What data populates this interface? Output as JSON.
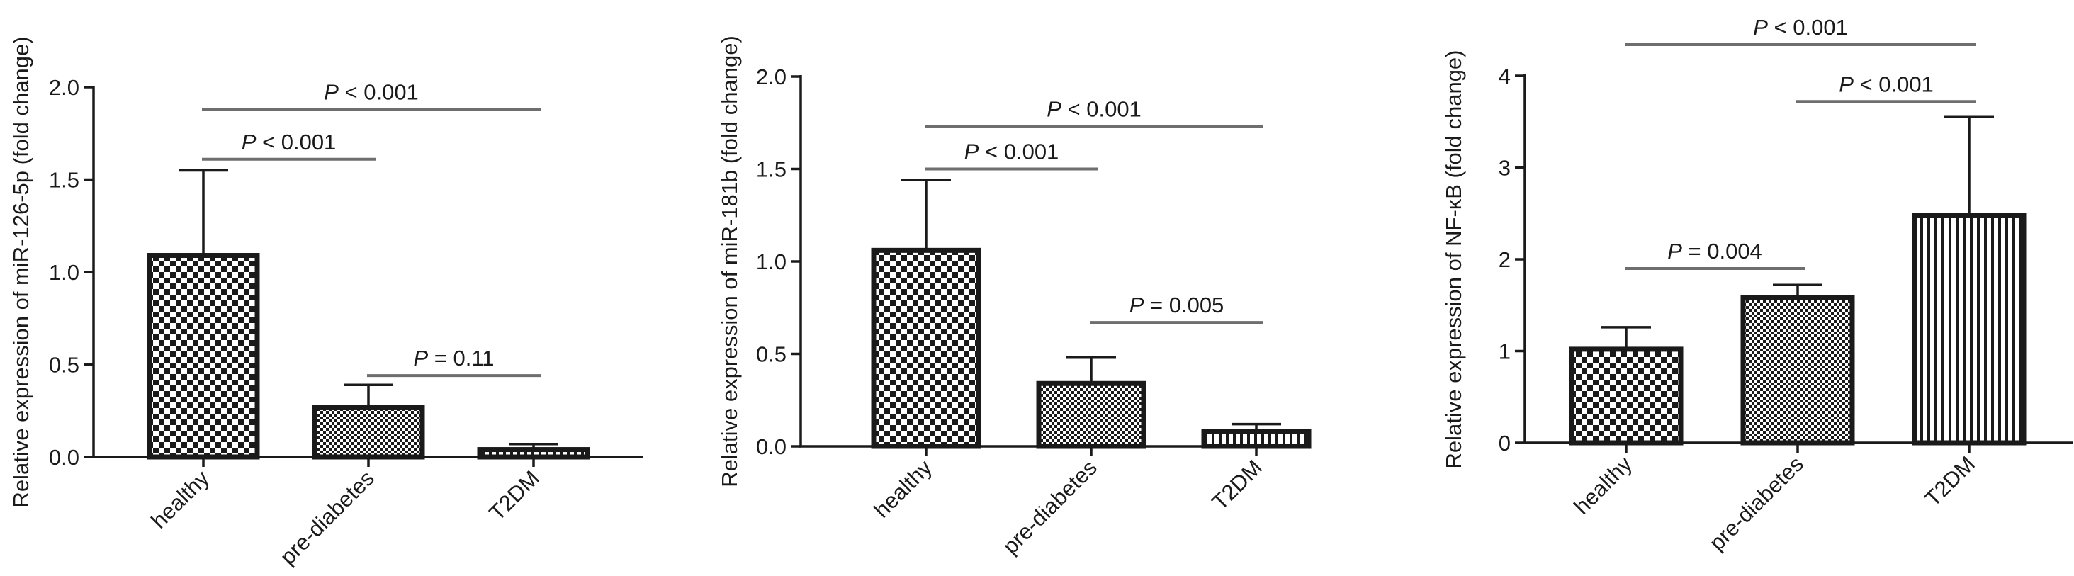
{
  "colors": {
    "ink": "#1a1a1a",
    "bracket": "#6e6e6e",
    "background": "#ffffff"
  },
  "patterns": {
    "healthy": "checker",
    "pre-diabetes": "fine-checker",
    "T2DM": "vertical-stripes"
  },
  "chart_data": [
    {
      "type": "bar",
      "ylabel": "Relative expression of miR-126-5p (fold change)",
      "categories": [
        "healthy",
        "pre-diabetes",
        "T2DM"
      ],
      "values": [
        1.09,
        0.27,
        0.04
      ],
      "errors": [
        0.46,
        0.12,
        0.03
      ],
      "ylim": [
        0,
        2.0
      ],
      "yticks": [
        0.0,
        0.5,
        1.0,
        1.5,
        2.0
      ],
      "ytick_labels": [
        "0.0",
        "0.5",
        "1.0",
        "1.5",
        "2.0"
      ],
      "comparisons": [
        {
          "from": 0,
          "to": 1,
          "y": 1.61,
          "p_symbol": "P",
          "p_text": " < 0.001"
        },
        {
          "from": 0,
          "to": 2,
          "y": 1.88,
          "p_symbol": "P",
          "p_text": " < 0.001"
        },
        {
          "from": 1,
          "to": 2,
          "y": 0.44,
          "p_symbol": "P",
          "p_text": " = 0.11"
        }
      ]
    },
    {
      "type": "bar",
      "ylabel": "Relative expression of miR-181b (fold change)",
      "categories": [
        "healthy",
        "pre-diabetes",
        "T2DM"
      ],
      "values": [
        1.06,
        0.34,
        0.08
      ],
      "errors": [
        0.38,
        0.14,
        0.04
      ],
      "ylim": [
        0,
        2.0
      ],
      "yticks": [
        0.0,
        0.5,
        1.0,
        1.5,
        2.0
      ],
      "ytick_labels": [
        "0.0",
        "0.5",
        "1.0",
        "1.5",
        "2.0"
      ],
      "comparisons": [
        {
          "from": 0,
          "to": 1,
          "y": 1.5,
          "p_symbol": "P",
          "p_text": " < 0.001"
        },
        {
          "from": 0,
          "to": 2,
          "y": 1.73,
          "p_symbol": "P",
          "p_text": " < 0.001"
        },
        {
          "from": 1,
          "to": 2,
          "y": 0.67,
          "p_symbol": "P",
          "p_text": " = 0.005"
        }
      ]
    },
    {
      "type": "bar",
      "ylabel": "Relative expression of NF-κB (fold change)",
      "categories": [
        "healthy",
        "pre-diabetes",
        "T2DM"
      ],
      "values": [
        1.02,
        1.58,
        2.48
      ],
      "errors": [
        0.24,
        0.14,
        1.07
      ],
      "ylim": [
        0,
        4
      ],
      "yticks": [
        0,
        1,
        2,
        3,
        4
      ],
      "ytick_labels": [
        "0",
        "1",
        "2",
        "3",
        "4"
      ],
      "comparisons": [
        {
          "from": 0,
          "to": 1,
          "y": 1.9,
          "p_symbol": "P",
          "p_text": " = 0.004"
        },
        {
          "from": 1,
          "to": 2,
          "y": 3.72,
          "p_symbol": "P",
          "p_text": " < 0.001"
        },
        {
          "from": 0,
          "to": 2,
          "y": 4.34,
          "p_symbol": "P",
          "p_text": " < 0.001"
        }
      ]
    }
  ]
}
